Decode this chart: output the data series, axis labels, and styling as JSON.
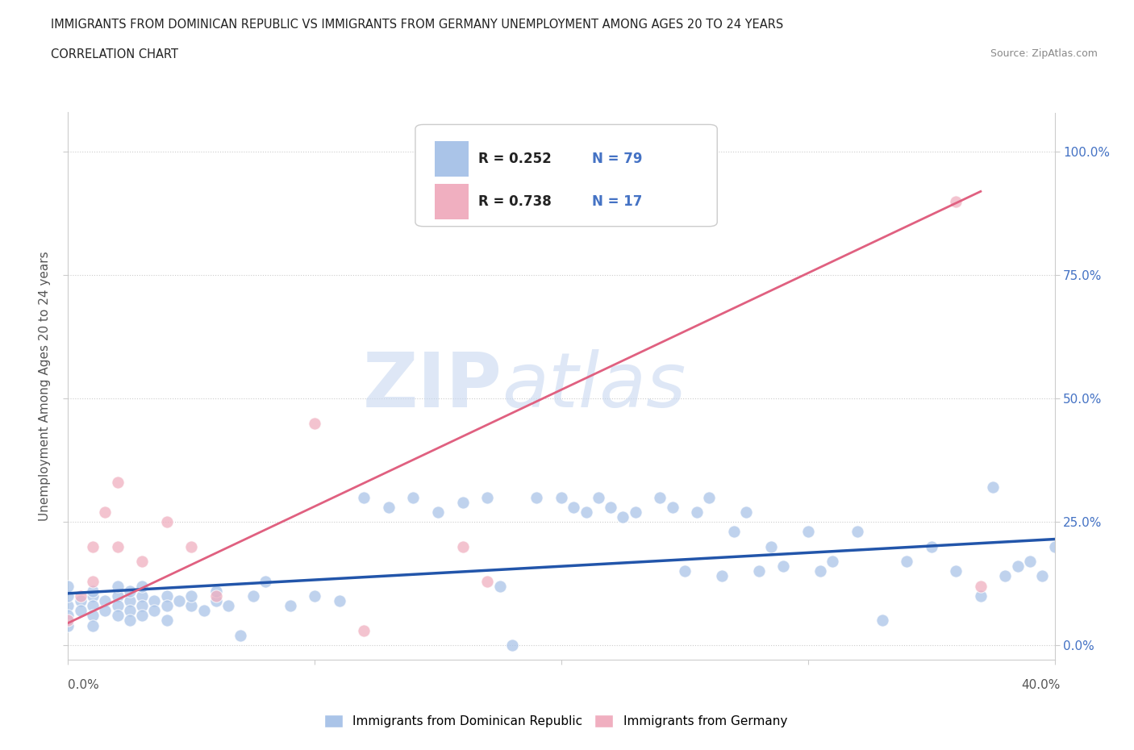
{
  "title_line1": "IMMIGRANTS FROM DOMINICAN REPUBLIC VS IMMIGRANTS FROM GERMANY UNEMPLOYMENT AMONG AGES 20 TO 24 YEARS",
  "title_line2": "CORRELATION CHART",
  "source_text": "Source: ZipAtlas.com",
  "ylabel": "Unemployment Among Ages 20 to 24 years",
  "xlim": [
    0.0,
    0.4
  ],
  "ylim": [
    -0.03,
    1.08
  ],
  "xtick_values": [
    0.0,
    0.1,
    0.2,
    0.3,
    0.4
  ],
  "ytick_values": [
    0.0,
    0.25,
    0.5,
    0.75,
    1.0
  ],
  "right_ytick_labels": [
    "0.0%",
    "25.0%",
    "50.0%",
    "75.0%",
    "100.0%"
  ],
  "blue_color": "#aac4e8",
  "pink_color": "#f0afc0",
  "blue_line_color": "#2255aa",
  "pink_line_color": "#e06080",
  "watermark_zip": "ZIP",
  "watermark_atlas": "atlas",
  "blue_scatter_x": [
    0.0,
    0.0,
    0.0,
    0.0,
    0.0,
    0.005,
    0.005,
    0.01,
    0.01,
    0.01,
    0.01,
    0.01,
    0.015,
    0.015,
    0.02,
    0.02,
    0.02,
    0.02,
    0.025,
    0.025,
    0.025,
    0.025,
    0.03,
    0.03,
    0.03,
    0.03,
    0.035,
    0.035,
    0.04,
    0.04,
    0.04,
    0.045,
    0.05,
    0.05,
    0.055,
    0.06,
    0.06,
    0.065,
    0.07,
    0.075,
    0.08,
    0.09,
    0.1,
    0.11,
    0.12,
    0.13,
    0.14,
    0.15,
    0.16,
    0.17,
    0.175,
    0.18,
    0.19,
    0.2,
    0.205,
    0.21,
    0.215,
    0.22,
    0.225,
    0.23,
    0.24,
    0.245,
    0.25,
    0.255,
    0.26,
    0.265,
    0.27,
    0.275,
    0.28,
    0.285,
    0.29,
    0.3,
    0.305,
    0.31,
    0.32,
    0.33,
    0.34,
    0.35,
    0.36,
    0.37,
    0.375,
    0.38,
    0.385,
    0.39,
    0.395,
    0.4
  ],
  "blue_scatter_y": [
    0.08,
    0.1,
    0.12,
    0.06,
    0.04,
    0.09,
    0.07,
    0.1,
    0.08,
    0.11,
    0.06,
    0.04,
    0.09,
    0.07,
    0.1,
    0.08,
    0.12,
    0.06,
    0.09,
    0.07,
    0.11,
    0.05,
    0.1,
    0.08,
    0.12,
    0.06,
    0.09,
    0.07,
    0.1,
    0.08,
    0.05,
    0.09,
    0.08,
    0.1,
    0.07,
    0.09,
    0.11,
    0.08,
    0.02,
    0.1,
    0.13,
    0.08,
    0.1,
    0.09,
    0.3,
    0.28,
    0.3,
    0.27,
    0.29,
    0.3,
    0.12,
    0.0,
    0.3,
    0.3,
    0.28,
    0.27,
    0.3,
    0.28,
    0.26,
    0.27,
    0.3,
    0.28,
    0.15,
    0.27,
    0.3,
    0.14,
    0.23,
    0.27,
    0.15,
    0.2,
    0.16,
    0.23,
    0.15,
    0.17,
    0.23,
    0.05,
    0.17,
    0.2,
    0.15,
    0.1,
    0.32,
    0.14,
    0.16,
    0.17,
    0.14,
    0.2
  ],
  "pink_scatter_x": [
    0.0,
    0.005,
    0.01,
    0.01,
    0.015,
    0.02,
    0.02,
    0.03,
    0.04,
    0.05,
    0.06,
    0.1,
    0.12,
    0.16,
    0.17,
    0.36,
    0.37
  ],
  "pink_scatter_y": [
    0.05,
    0.1,
    0.2,
    0.13,
    0.27,
    0.33,
    0.2,
    0.17,
    0.25,
    0.2,
    0.1,
    0.45,
    0.03,
    0.2,
    0.13,
    0.9,
    0.12
  ],
  "blue_line_x": [
    0.0,
    0.4
  ],
  "blue_line_y": [
    0.105,
    0.215
  ],
  "pink_line_x": [
    0.0,
    0.37
  ],
  "pink_line_y": [
    0.045,
    0.92
  ]
}
